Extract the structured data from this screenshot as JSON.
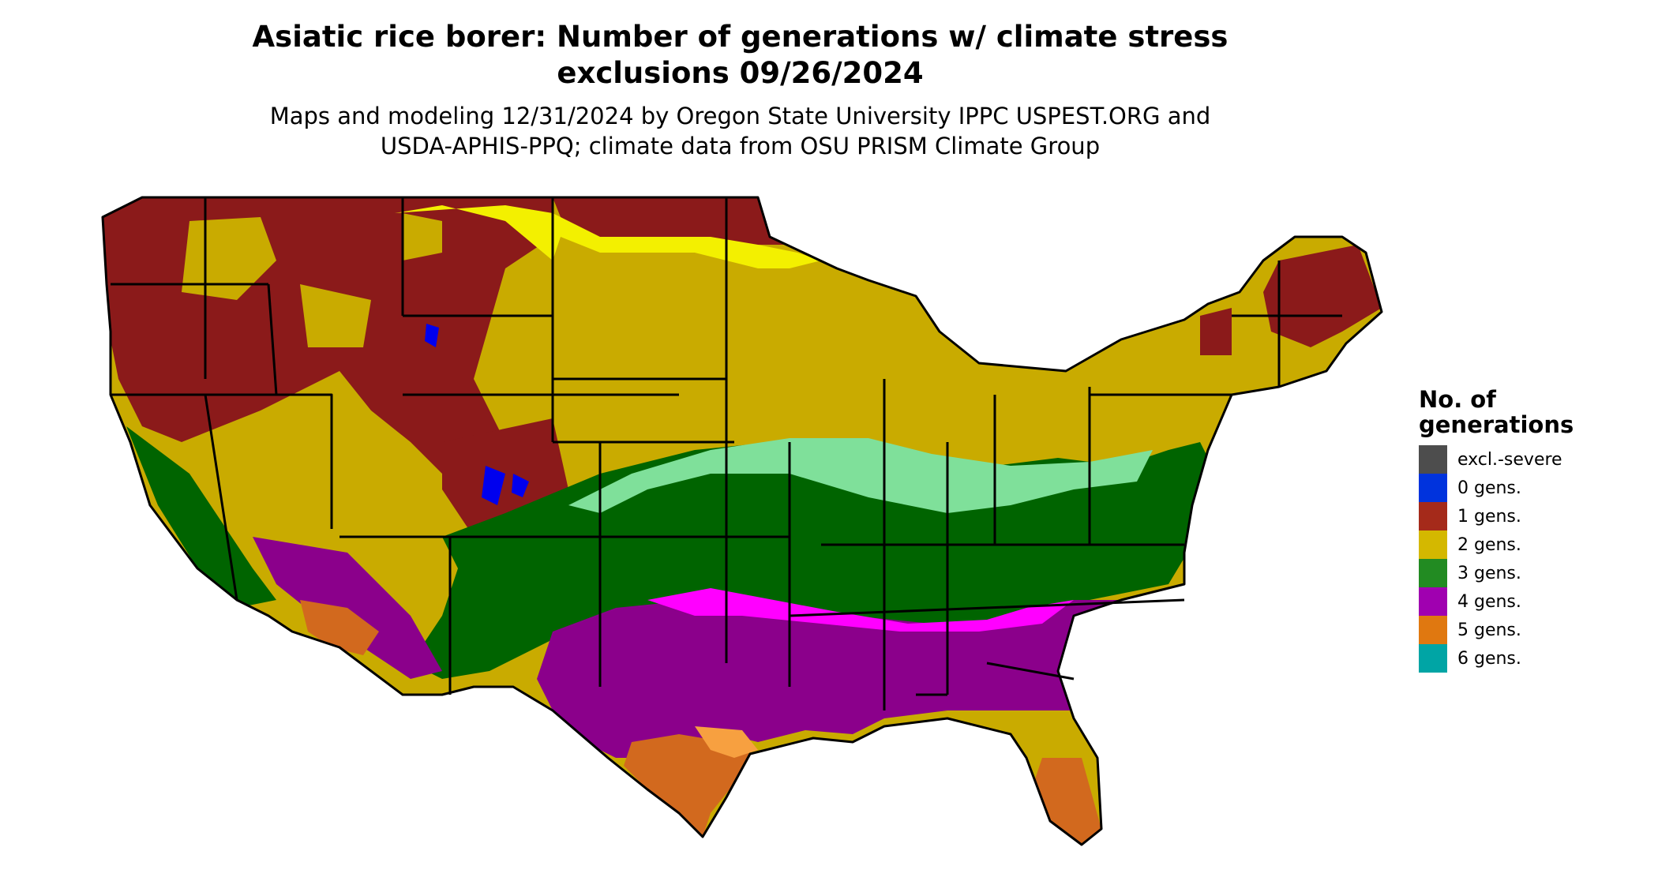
{
  "title": {
    "line1": "Asiatic rice borer: Number of generations w/ climate stress",
    "line2": "exclusions 09/26/2024"
  },
  "subtitle": {
    "line1": "Maps and modeling 12/31/2024 by Oregon State University IPPC USPEST.ORG and",
    "line2": "USDA-APHIS-PPQ; climate data from OSU PRISM Climate Group"
  },
  "legend": {
    "title_line1": "No. of",
    "title_line2": "generations",
    "items": [
      {
        "label": "excl.-severe",
        "color": "#4d4d4d"
      },
      {
        "label": "0 gens.",
        "color": "#0033dd"
      },
      {
        "label": "1 gens.",
        "color": "#a52a1a"
      },
      {
        "label": "2 gens.",
        "color": "#d4b800"
      },
      {
        "label": "3 gens.",
        "color": "#228b22"
      },
      {
        "label": "4 gens.",
        "color": "#a000b0"
      },
      {
        "label": "5 gens.",
        "color": "#e07810"
      },
      {
        "label": "6 gens.",
        "color": "#00a5a5"
      }
    ]
  },
  "map_colors": {
    "one_gen": "#8b1a1a",
    "two_gen": "#c9ab00",
    "two_gen_light": "#f3f000",
    "three_gen": "#006400",
    "three_gen_light": "#7fe09a",
    "four_gen": "#8b008b",
    "four_gen_light": "#ff00ff",
    "five_gen": "#d2691e",
    "five_gen_light": "#f7a040",
    "zero_gen": "#0000ee",
    "orange_red": "#e24a10",
    "border": "#000000"
  }
}
